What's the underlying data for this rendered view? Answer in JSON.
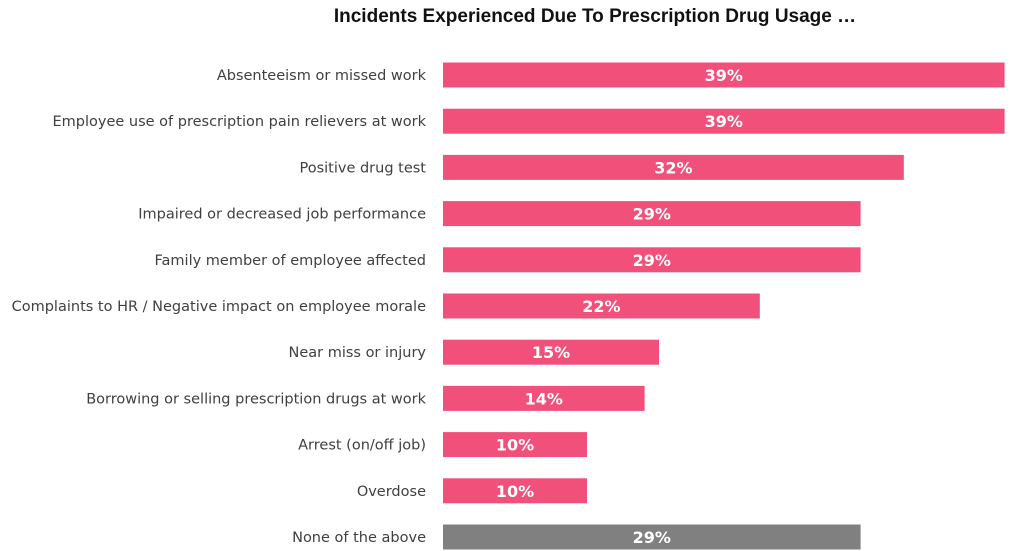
{
  "chart_data": {
    "type": "bar",
    "orientation": "horizontal",
    "title": "Incidents Experienced Due To Prescription Drug Usage …",
    "categories": [
      "Absenteeism or missed work",
      "Employee use of prescription pain relievers at work",
      "Positive drug test",
      "Impaired or decreased job performance",
      "Family member of employee affected",
      "Complaints to HR / Negative impact on employee morale",
      "Near miss or injury",
      "Borrowing or selling prescription drugs at work",
      "Arrest (on/off job)",
      "Overdose",
      "None of the above"
    ],
    "values": [
      39,
      39,
      32,
      29,
      29,
      22,
      15,
      14,
      10,
      10,
      29
    ],
    "value_labels": [
      "39%",
      "39%",
      "32%",
      "29%",
      "29%",
      "22%",
      "15%",
      "14%",
      "10%",
      "10%",
      "29%"
    ],
    "unit": "%",
    "xlim": [
      0,
      39
    ],
    "grid": false,
    "legend": "none",
    "colors": {
      "bar": "#f0507a",
      "none_bar": "#808080",
      "bar_label": "#ffffff",
      "category_label": "#404040"
    }
  }
}
